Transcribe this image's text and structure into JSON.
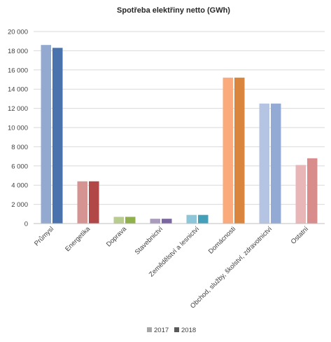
{
  "chart_data": {
    "type": "bar",
    "title": "Spotřeba elektřiny netto (GWh)",
    "xlabel": "",
    "ylabel": "",
    "ylim": [
      0,
      20000
    ],
    "yticks": [
      "0",
      "2 000",
      "4 000",
      "6 000",
      "8 000",
      "10 000",
      "12 000",
      "14 000",
      "16 000",
      "18 000",
      "20 000"
    ],
    "ytick_values": [
      0,
      2000,
      4000,
      6000,
      8000,
      10000,
      12000,
      14000,
      16000,
      18000,
      20000
    ],
    "grid": true,
    "legend_position": "bottom",
    "categories": [
      "Průmysl",
      "Energetika",
      "Doprava",
      "Stavebnictví",
      "Zemědělství a lesnictví",
      "Domácnosti",
      "Obchod, služby, školství, zdravotnictví",
      "Ostatní"
    ],
    "series": [
      {
        "name": "2017",
        "values": [
          18600,
          4400,
          700,
          500,
          900,
          15200,
          12500,
          6100
        ]
      },
      {
        "name": "2018",
        "values": [
          18300,
          4400,
          700,
          500,
          900,
          15200,
          12500,
          6800
        ]
      }
    ],
    "colors": {
      "2017": [
        "#93a9cf",
        "#d59491",
        "#b8cc8f",
        "#a99bbd",
        "#8cc6d8",
        "#fbaa7c",
        "#b5c4e2",
        "#e8b6b6"
      ],
      "2018": [
        "#4a73ad",
        "#b24747",
        "#8fb04d",
        "#7a66a0",
        "#43a0b8",
        "#d9853e",
        "#93aad4",
        "#d98c8c"
      ],
      "legend_2017": "#a6a6a6",
      "legend_2018": "#595959"
    }
  }
}
